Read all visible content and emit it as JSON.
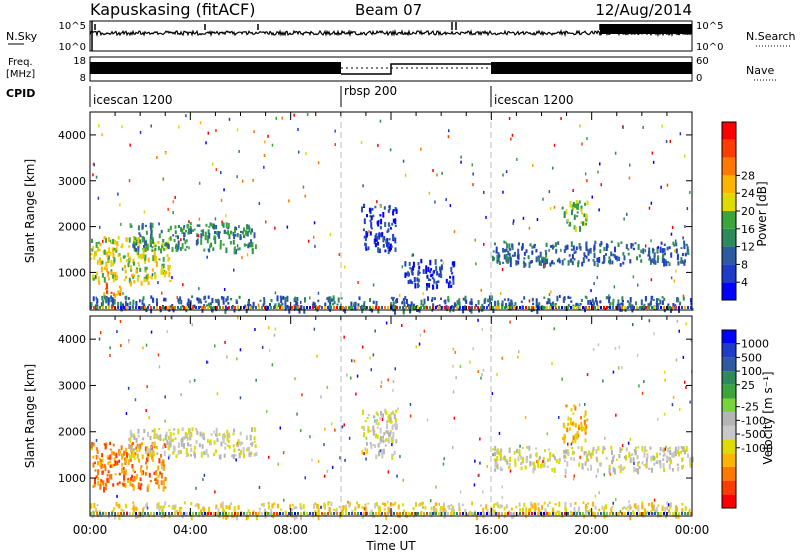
{
  "header": {
    "station": "Kapuskasing (fitACF)",
    "beam": "Beam 07",
    "date": "12/Aug/2014"
  },
  "panels": {
    "nsky": {
      "label": "N.Sky",
      "right_label": "N.Search",
      "left_ticks": [
        "10^5",
        "10^0"
      ],
      "right_ticks": [
        "10^5",
        "10^0"
      ]
    },
    "freq": {
      "label_line1": "Freq.",
      "label_line2": "[MHz]",
      "right_label": "Nave",
      "left_ticks": [
        "18",
        "8"
      ],
      "right_ticks": [
        "60",
        "0"
      ]
    },
    "cpid": {
      "label": "CPID",
      "segments": [
        {
          "name": "icescan 1200",
          "start_h": 0,
          "end_h": 10
        },
        {
          "name": "rbsp 200",
          "start_h": 10,
          "end_h": 16
        },
        {
          "name": "icescan 1200",
          "start_h": 16,
          "end_h": 24
        }
      ]
    }
  },
  "axes": {
    "ylabel": "Slant Range [km]",
    "yticks": [
      "1000",
      "2000",
      "3000",
      "4000"
    ],
    "xticks": [
      "00:00",
      "04:00",
      "08:00",
      "12:00",
      "16:00",
      "20:00",
      "00:00"
    ],
    "xlabel": "Time UT"
  },
  "colorbars": {
    "power": {
      "label": "Power [dB]",
      "ticks": [
        "4",
        "8",
        "12",
        "16",
        "20",
        "24",
        "28"
      ],
      "colors": [
        "#0000ff",
        "#1e3cc8",
        "#2d5aa0",
        "#2f8a5a",
        "#3aa53a",
        "#dcdc00",
        "#ffb400",
        "#ff7800",
        "#ff3c00",
        "#ff0000"
      ]
    },
    "velocity": {
      "label": "Velocity [m s⁻¹]",
      "ticks": [
        "1000",
        "500",
        "100",
        "25",
        "-25",
        "-100",
        "-500",
        "-1000"
      ],
      "colors": [
        "#0000ff",
        "#1e3cc8",
        "#2d5aa0",
        "#2f8a5a",
        "#3aa53a",
        "#7ad23c",
        "#b4b4b4",
        "#c8c8c8",
        "#dcdc00",
        "#ffb400",
        "#ff7800",
        "#ff3c00",
        "#ff0000"
      ]
    }
  },
  "chart_data": {
    "type": "heatmap",
    "x_range_hours": [
      0,
      24
    ],
    "y_range_km": [
      180,
      4500
    ],
    "mode_change_hours": [
      10,
      16
    ],
    "echo_regions_power": [
      {
        "t0": 0.0,
        "t1": 3.2,
        "r0": 800,
        "r1": 1800,
        "level": 5
      },
      {
        "t0": 0.5,
        "t1": 1.2,
        "r0": 500,
        "r1": 800,
        "level": 7
      },
      {
        "t0": 1.5,
        "t1": 6.6,
        "r0": 1500,
        "r1": 2100,
        "level": 3
      },
      {
        "t0": 12.5,
        "t1": 14.5,
        "r0": 700,
        "r1": 1300,
        "level": 1
      },
      {
        "t0": 10.8,
        "t1": 12.2,
        "r0": 1500,
        "r1": 2500,
        "level": 1
      },
      {
        "t0": 16.0,
        "t1": 24.0,
        "r0": 1200,
        "r1": 1700,
        "level": 2
      },
      {
        "t0": 18.8,
        "t1": 19.8,
        "r0": 2000,
        "r1": 2600,
        "level": 4
      },
      {
        "t0": 0.0,
        "t1": 24.0,
        "r0": 200,
        "r1": 500,
        "level": 2
      }
    ],
    "echo_regions_velocity": [
      {
        "t0": 0.0,
        "t1": 3.0,
        "r0": 800,
        "r1": 1800,
        "level": 10
      },
      {
        "t0": 1.5,
        "t1": 6.6,
        "r0": 1500,
        "r1": 2100,
        "level": 7
      },
      {
        "t0": 10.8,
        "t1": 12.2,
        "r0": 1500,
        "r1": 2500,
        "level": 7
      },
      {
        "t0": 16.0,
        "t1": 24.0,
        "r0": 1200,
        "r1": 1700,
        "level": 7
      },
      {
        "t0": 18.8,
        "t1": 19.8,
        "r0": 1800,
        "r1": 2600,
        "level": 9
      },
      {
        "t0": 0.0,
        "t1": 24.0,
        "r0": 200,
        "r1": 500,
        "level": 8
      }
    ]
  }
}
